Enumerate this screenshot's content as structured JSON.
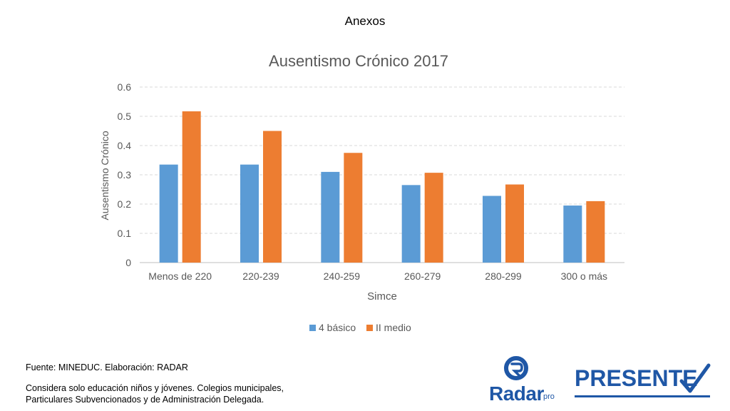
{
  "slide": {
    "title": "Anexos",
    "footer_source": "Fuente: MINEDUC. Elaboración: RADAR",
    "footer_note": "Considera solo educación niños y jóvenes. Colegios municipales, Particulares Subvencionados y de Administración Delegada."
  },
  "logos": {
    "radar_text": "Radar",
    "radar_suffix": "pro",
    "presente_text": "PRESENTE",
    "brand_color": "#1f57a6"
  },
  "chart_data": {
    "type": "bar",
    "title": "Ausentismo Crónico 2017",
    "xlabel": "Simce",
    "ylabel": "Ausentismo Crónico",
    "categories": [
      "Menos de 220",
      "220-239",
      "240-259",
      "260-279",
      "280-299",
      "300 o más"
    ],
    "series": [
      {
        "name": "4 básico",
        "color": "#5b9bd5",
        "values": [
          0.335,
          0.335,
          0.31,
          0.265,
          0.228,
          0.195
        ]
      },
      {
        "name": "II medio",
        "color": "#ed7d31",
        "values": [
          0.517,
          0.45,
          0.375,
          0.307,
          0.267,
          0.21
        ]
      }
    ],
    "ylim": [
      0,
      0.6
    ],
    "yticks": [
      "0",
      "0.1",
      "0.2",
      "0.3",
      "0.4",
      "0.5",
      "0.6"
    ],
    "grid": true,
    "legend": "bottom"
  }
}
